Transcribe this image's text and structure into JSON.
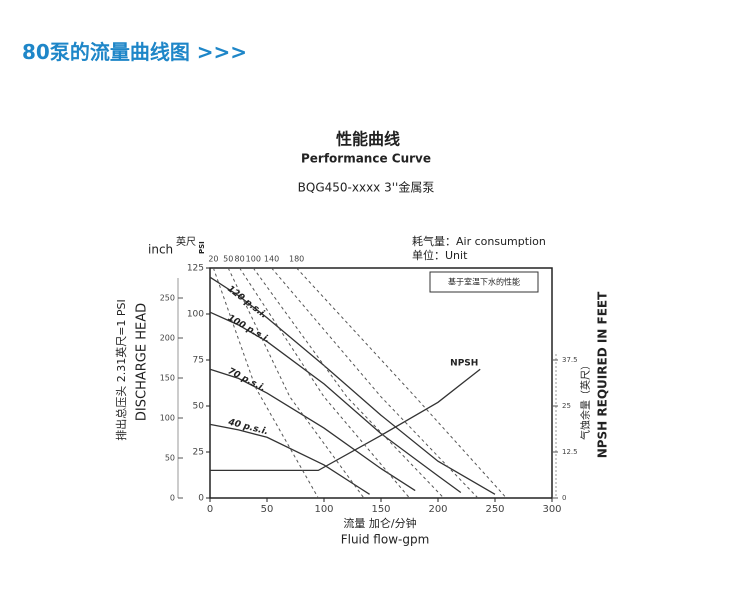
{
  "header": {
    "title": "80泵的流量曲线图 >>>"
  },
  "chart_data": {
    "type": "line",
    "title": "性能曲线",
    "subtitle": "Performance Curve",
    "model": "BQG450-xxxx 3''金属泵",
    "legend_text": [
      "耗气量：Air consumption",
      "单位：Unit"
    ],
    "note": "基于室温下水的性能",
    "left_unit_labels": [
      "inch",
      "英尺",
      "PSI"
    ],
    "ylabel": [
      "排出总压头 2.31英尺=1 PSI",
      "DISCHARGE HEAD"
    ],
    "y2label": [
      "气蚀余量（英尺）",
      "NPSH REQUIRED IN FEET"
    ],
    "xlabel": [
      "流量 加仑/分钟",
      "Fluid flow-gpm"
    ],
    "xlim": [
      0,
      300
    ],
    "xticks": [
      0,
      50,
      100,
      150,
      200,
      250,
      300
    ],
    "ylim": [
      0,
      125
    ],
    "yticks": [
      0,
      25,
      50,
      75,
      100,
      125
    ],
    "y2lim": [
      0,
      62.5
    ],
    "y2ticks": [
      0,
      12.5,
      25,
      37.5
    ],
    "y3lim": [
      0,
      287.5
    ],
    "y3ticks": [
      0,
      50,
      100,
      150,
      200,
      250
    ],
    "series": [
      {
        "name": "120 p.s.i.",
        "color": "#333",
        "x": [
          0,
          25,
          50,
          100,
          150,
          200,
          250
        ],
        "values": [
          120,
          110,
          98,
          72,
          45,
          20,
          2
        ]
      },
      {
        "name": "100 p.s.i.",
        "color": "#333",
        "x": [
          0,
          25,
          50,
          100,
          150,
          200,
          220
        ],
        "values": [
          101,
          94,
          85,
          62,
          35,
          12,
          3
        ]
      },
      {
        "name": "70 p.s.i.",
        "color": "#333",
        "x": [
          0,
          25,
          50,
          100,
          150,
          180
        ],
        "values": [
          70,
          65,
          57,
          38,
          16,
          4
        ]
      },
      {
        "name": "40 p.s.i.",
        "color": "#333",
        "x": [
          0,
          25,
          50,
          100,
          130,
          140
        ],
        "values": [
          40,
          37,
          33,
          18,
          6,
          2
        ]
      },
      {
        "name": "NPSH",
        "color": "#333",
        "axis": "y2",
        "x": [
          0,
          95,
          150,
          200,
          237
        ],
        "values": [
          7.5,
          7.5,
          17,
          26,
          35
        ]
      },
      {
        "name": "20",
        "color": "#555",
        "dash": true,
        "x": [
          3,
          40,
          95
        ],
        "values": [
          125,
          60,
          0
        ]
      },
      {
        "name": "50",
        "color": "#555",
        "dash": true,
        "x": [
          16,
          70,
          135
        ],
        "values": [
          125,
          55,
          0
        ]
      },
      {
        "name": "80",
        "color": "#555",
        "dash": true,
        "x": [
          26,
          100,
          175
        ],
        "values": [
          125,
          55,
          0
        ]
      },
      {
        "name": "100",
        "color": "#555",
        "dash": true,
        "x": [
          38,
          120,
          205
        ],
        "values": [
          125,
          55,
          0
        ]
      },
      {
        "name": "140",
        "color": "#555",
        "dash": true,
        "x": [
          54,
          150,
          235
        ],
        "values": [
          125,
          55,
          0
        ]
      },
      {
        "name": "180",
        "color": "#555",
        "dash": true,
        "x": [
          76,
          180,
          260
        ],
        "values": [
          125,
          55,
          0
        ]
      }
    ]
  }
}
